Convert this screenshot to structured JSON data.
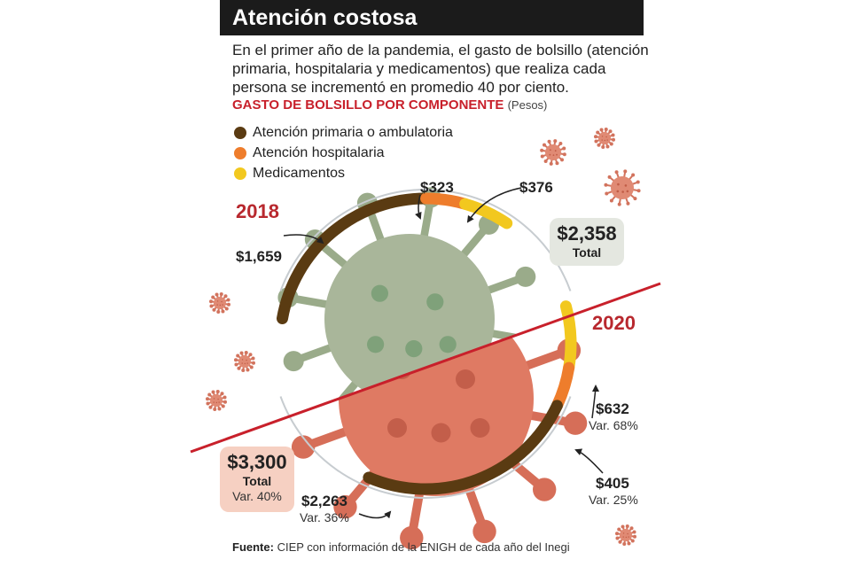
{
  "header": {
    "title": "Atención costosa",
    "intro": "En el primer año de la pandemia, el gasto de bolsillo (atención primaria, hospitalaria y medicamentos) que realiza cada persona se incrementó en promedio 40 por ciento.",
    "subtitle": "GASTO DE BOLSILLO POR COMPONENTE",
    "subtitle_unit": "(Pesos)"
  },
  "legend": [
    {
      "label": "Atención primaria o ambulatoria",
      "color": "#5a3b12"
    },
    {
      "label": "Atención hospitalaria",
      "color": "#ee7d2c"
    },
    {
      "label": "Medicamentos",
      "color": "#f2c81f"
    }
  ],
  "chart_data": [
    {
      "type": "pie",
      "title": "2018",
      "categories": [
        "Atención primaria o ambulatoria",
        "Atención hospitalaria",
        "Medicamentos"
      ],
      "values": [
        1659,
        323,
        376
      ],
      "value_labels": [
        "$1,659",
        "$323",
        "$376"
      ],
      "total": 2358,
      "total_label": "$2,358",
      "total_caption": "Total"
    },
    {
      "type": "pie",
      "title": "2020",
      "categories": [
        "Atención primaria o ambulatoria",
        "Atención hospitalaria",
        "Medicamentos"
      ],
      "values": [
        2263,
        405,
        632
      ],
      "value_labels": [
        "$2,263",
        "$405",
        "$632"
      ],
      "variations": [
        "Var. 36%",
        "Var. 25%",
        "Var. 68%"
      ],
      "total": 3300,
      "total_label": "$3,300",
      "total_caption": "Total",
      "total_variation": "Var. 40%"
    }
  ],
  "source": {
    "label": "Fuente:",
    "text": "CIEP con información de la ENIGH de cada año del Inegi"
  },
  "colors": {
    "primaria": "#5a3b12",
    "hospitalaria": "#ee7d2c",
    "medicamentos": "#f2c81f",
    "accent_red": "#c8202b",
    "virus_green": "#a9b69a",
    "virus_pink": "#df7a63"
  }
}
